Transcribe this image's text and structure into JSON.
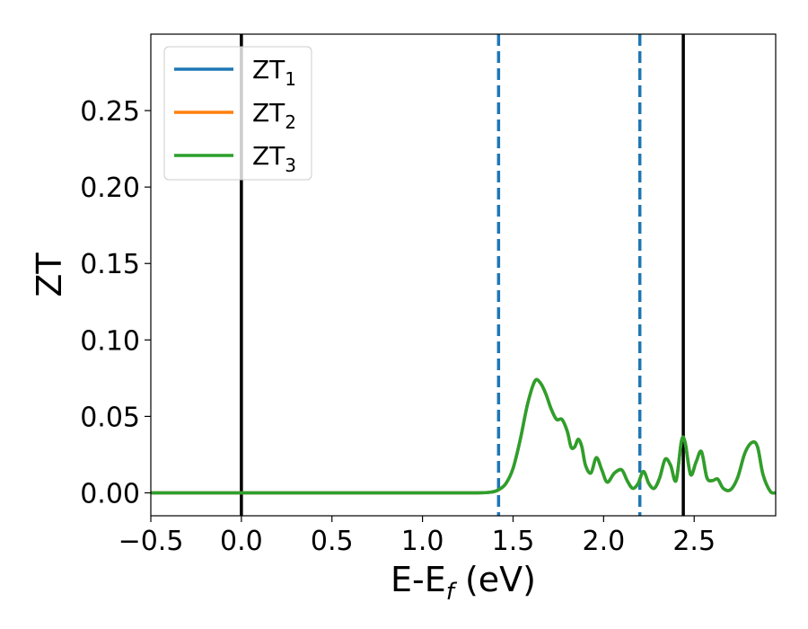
{
  "chart_data": {
    "type": "line",
    "xlabel": "E-E",
    "xlabel_subscript": "f",
    "xlabel_suffix": " (eV)",
    "ylabel": "ZT",
    "xlim": [
      -0.5,
      2.95
    ],
    "ylim": [
      -0.015,
      0.3
    ],
    "xticks": [
      -0.5,
      0.0,
      0.5,
      1.0,
      1.5,
      2.0,
      2.5
    ],
    "xtick_labels": [
      "−0.5",
      "0.0",
      "0.5",
      "1.0",
      "1.5",
      "2.0",
      "2.5"
    ],
    "yticks": [
      0.0,
      0.05,
      0.1,
      0.15,
      0.2,
      0.25
    ],
    "ytick_labels": [
      "0.00",
      "0.05",
      "0.10",
      "0.15",
      "0.20",
      "0.25"
    ],
    "grid": false,
    "legend_position": "top-left",
    "vertical_lines": [
      {
        "x": 0.0,
        "style": "solid",
        "color": "#000000"
      },
      {
        "x": 2.44,
        "style": "solid",
        "color": "#000000"
      },
      {
        "x": 1.42,
        "style": "dashed",
        "color": "#1f77b4"
      },
      {
        "x": 2.2,
        "style": "dashed",
        "color": "#1f77b4"
      }
    ],
    "x": [
      -0.5,
      0.0,
      0.5,
      1.0,
      1.3,
      1.38,
      1.42,
      1.46,
      1.5,
      1.54,
      1.58,
      1.62,
      1.65,
      1.68,
      1.71,
      1.74,
      1.77,
      1.8,
      1.82,
      1.84,
      1.86,
      1.88,
      1.9,
      1.93,
      1.96,
      1.99,
      2.02,
      2.06,
      2.1,
      2.13,
      2.16,
      2.19,
      2.22,
      2.25,
      2.28,
      2.31,
      2.34,
      2.37,
      2.4,
      2.43,
      2.45,
      2.48,
      2.51,
      2.54,
      2.57,
      2.6,
      2.63,
      2.66,
      2.7,
      2.74,
      2.78,
      2.82,
      2.85,
      2.88,
      2.92,
      2.95
    ],
    "series": [
      {
        "name": "ZT",
        "name_subscript": "1",
        "color": "#1f77b4",
        "values": [
          0,
          0,
          0,
          0,
          0,
          0.0005,
          0.002,
          0.006,
          0.016,
          0.035,
          0.058,
          0.073,
          0.072,
          0.065,
          0.055,
          0.048,
          0.048,
          0.04,
          0.03,
          0.03,
          0.035,
          0.03,
          0.018,
          0.013,
          0.023,
          0.015,
          0.007,
          0.013,
          0.015,
          0.008,
          0.003,
          0.006,
          0.014,
          0.006,
          0.003,
          0.01,
          0.022,
          0.018,
          0.008,
          0.034,
          0.033,
          0.012,
          0.02,
          0.027,
          0.01,
          0.008,
          0.009,
          0.003,
          0.002,
          0.01,
          0.026,
          0.033,
          0.03,
          0.012,
          0.001,
          0.0
        ]
      },
      {
        "name": "ZT",
        "name_subscript": "2",
        "color": "#ff7f0e",
        "values": [
          0,
          0,
          0,
          0,
          0,
          0.0005,
          0.002,
          0.006,
          0.016,
          0.035,
          0.058,
          0.073,
          0.072,
          0.065,
          0.055,
          0.048,
          0.048,
          0.04,
          0.03,
          0.03,
          0.035,
          0.03,
          0.018,
          0.013,
          0.023,
          0.015,
          0.007,
          0.013,
          0.015,
          0.008,
          0.003,
          0.006,
          0.014,
          0.006,
          0.003,
          0.01,
          0.022,
          0.018,
          0.008,
          0.034,
          0.033,
          0.012,
          0.02,
          0.027,
          0.01,
          0.008,
          0.009,
          0.003,
          0.002,
          0.01,
          0.026,
          0.033,
          0.03,
          0.012,
          0.001,
          0.0
        ]
      },
      {
        "name": "ZT",
        "name_subscript": "3",
        "color": "#2ca02c",
        "values": [
          0,
          0,
          0,
          0,
          0,
          0.0005,
          0.002,
          0.006,
          0.016,
          0.035,
          0.058,
          0.073,
          0.072,
          0.065,
          0.055,
          0.048,
          0.048,
          0.04,
          0.03,
          0.03,
          0.035,
          0.03,
          0.018,
          0.013,
          0.023,
          0.015,
          0.007,
          0.013,
          0.015,
          0.008,
          0.003,
          0.006,
          0.014,
          0.006,
          0.003,
          0.01,
          0.022,
          0.018,
          0.008,
          0.034,
          0.033,
          0.012,
          0.02,
          0.027,
          0.01,
          0.008,
          0.009,
          0.003,
          0.002,
          0.01,
          0.026,
          0.033,
          0.03,
          0.012,
          0.001,
          0.0
        ]
      }
    ]
  }
}
